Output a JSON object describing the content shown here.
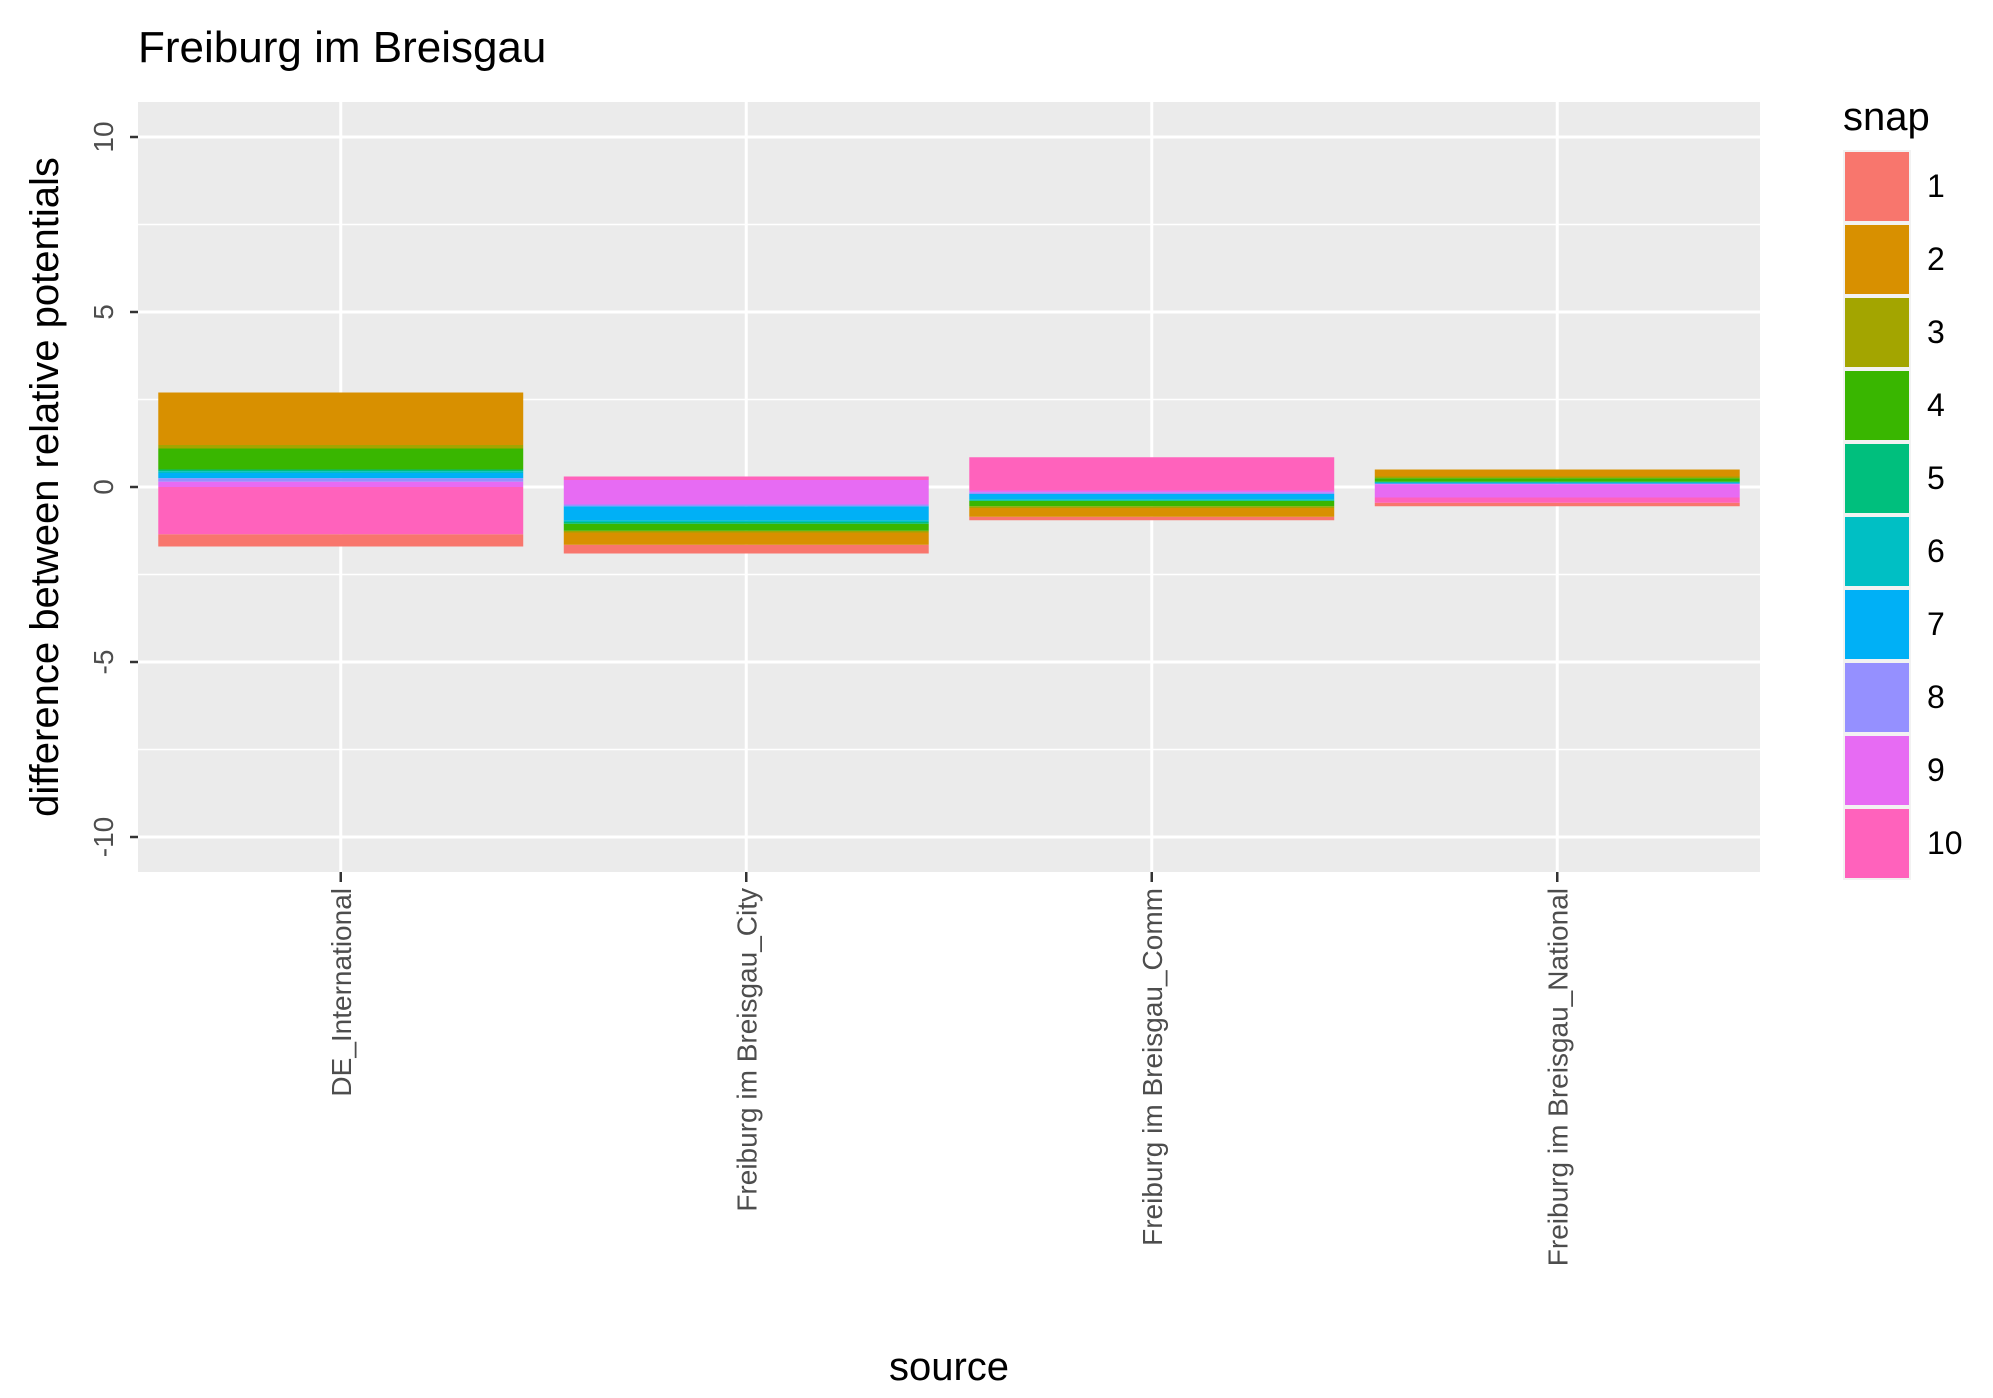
{
  "chart_data": {
    "type": "bar",
    "stacked": true,
    "title": "Freiburg im Breisgau",
    "xlabel": "source",
    "ylabel": "difference between relative potentials",
    "ylim": [
      -11,
      11
    ],
    "yticks": [
      -10,
      -5,
      0,
      5,
      10
    ],
    "categories": [
      "DE_International",
      "Freiburg im Breisgau_City",
      "Freiburg im Breisgau_Comm",
      "Freiburg im Breisgau_National"
    ],
    "legend": {
      "title": "snap",
      "position": "right"
    },
    "grid": true,
    "series": [
      {
        "name": "1",
        "color": "#F8766D",
        "segments": [
          [
            -1.7,
            -1.35
          ],
          [
            -1.9,
            -1.65
          ],
          [
            -0.95,
            -0.85
          ],
          [
            -0.55,
            -0.45
          ]
        ]
      },
      {
        "name": "2",
        "color": "#D89000",
        "segments": [
          [
            1.2,
            2.7
          ],
          [
            -1.65,
            -1.3
          ],
          [
            -0.85,
            -0.6
          ],
          [
            0.3,
            0.5
          ]
        ]
      },
      {
        "name": "3",
        "color": "#A3A500",
        "segments": [
          [
            1.1,
            1.2
          ],
          [
            -1.3,
            -1.25
          ],
          [
            -0.6,
            -0.55
          ],
          [
            0.25,
            0.3
          ]
        ]
      },
      {
        "name": "4",
        "color": "#39B600",
        "segments": [
          [
            0.5,
            1.1
          ],
          [
            -1.25,
            -1.05
          ],
          [
            -0.55,
            -0.4
          ],
          [
            0.15,
            0.25
          ]
        ]
      },
      {
        "name": "5",
        "color": "#00BF7D",
        "segments": [
          [
            0.45,
            0.5
          ],
          [
            -1.05,
            -1.0
          ],
          [
            -0.4,
            -0.38
          ],
          [
            0.13,
            0.15
          ]
        ]
      },
      {
        "name": "6",
        "color": "#00BFC4",
        "segments": [
          [
            0.4,
            0.45
          ],
          [
            -1.0,
            -0.95
          ],
          [
            -0.38,
            -0.35
          ],
          [
            0.12,
            0.13
          ]
        ]
      },
      {
        "name": "7",
        "color": "#00B0F6",
        "segments": [
          [
            0.25,
            0.4
          ],
          [
            -0.95,
            -0.55
          ],
          [
            -0.35,
            -0.2
          ],
          [
            0.1,
            0.12
          ]
        ]
      },
      {
        "name": "8",
        "color": "#9590FF",
        "segments": [
          [
            0.15,
            0.25
          ],
          [
            -0.55,
            -0.5
          ],
          [
            -0.2,
            -0.15
          ],
          [
            0.08,
            0.1
          ]
        ]
      },
      {
        "name": "9",
        "color": "#E76BF3",
        "segments": [
          [
            0.0,
            0.15
          ],
          [
            -0.5,
            0.2
          ],
          [
            -0.15,
            -0.1
          ],
          [
            -0.3,
            0.08
          ]
        ]
      },
      {
        "name": "10",
        "color": "#FF62BC",
        "segments": [
          [
            -1.35,
            0.0
          ],
          [
            0.2,
            0.3
          ],
          [
            -0.1,
            0.85
          ],
          [
            -0.45,
            -0.3
          ]
        ]
      }
    ]
  }
}
